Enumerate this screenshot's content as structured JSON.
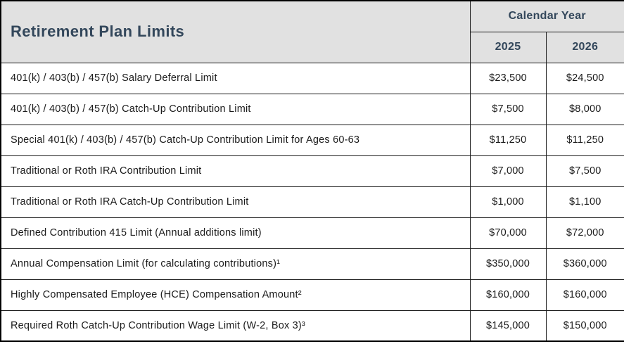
{
  "table": {
    "title": "Retirement Plan Limits",
    "header": {
      "calendar_year_label": "Calendar Year",
      "years": [
        "2025",
        "2026"
      ]
    },
    "colors": {
      "header_background": "#e1e1e1",
      "header_text": "#33475b",
      "body_text": "#1b1b1b",
      "border": "#000000"
    },
    "rows": [
      {
        "label": "401(k) / 403(b) / 457(b) Salary Deferral Limit",
        "values": [
          "$23,500",
          "$24,500"
        ]
      },
      {
        "label": "401(k) / 403(b) / 457(b) Catch-Up Contribution Limit",
        "values": [
          "$7,500",
          "$8,000"
        ]
      },
      {
        "label": "Special 401(k) / 403(b) / 457(b) Catch-Up Contribution Limit for Ages 60-63",
        "values": [
          "$11,250",
          "$11,250"
        ]
      },
      {
        "label": "Traditional or Roth IRA Contribution Limit",
        "values": [
          "$7,000",
          "$7,500"
        ]
      },
      {
        "label": "Traditional or Roth IRA Catch-Up Contribution Limit",
        "values": [
          "$1,000",
          "$1,100"
        ]
      },
      {
        "label": "Defined Contribution 415 Limit (Annual additions limit)",
        "values": [
          "$70,000",
          "$72,000"
        ]
      },
      {
        "label": "Annual Compensation Limit (for calculating contributions)¹",
        "values": [
          "$350,000",
          "$360,000"
        ]
      },
      {
        "label": "Highly Compensated Employee (HCE) Compensation Amount²",
        "values": [
          "$160,000",
          "$160,000"
        ]
      },
      {
        "label": "Required Roth Catch-Up Contribution Wage Limit (W-2, Box 3)³",
        "values": [
          "$145,000",
          "$150,000"
        ]
      }
    ]
  }
}
